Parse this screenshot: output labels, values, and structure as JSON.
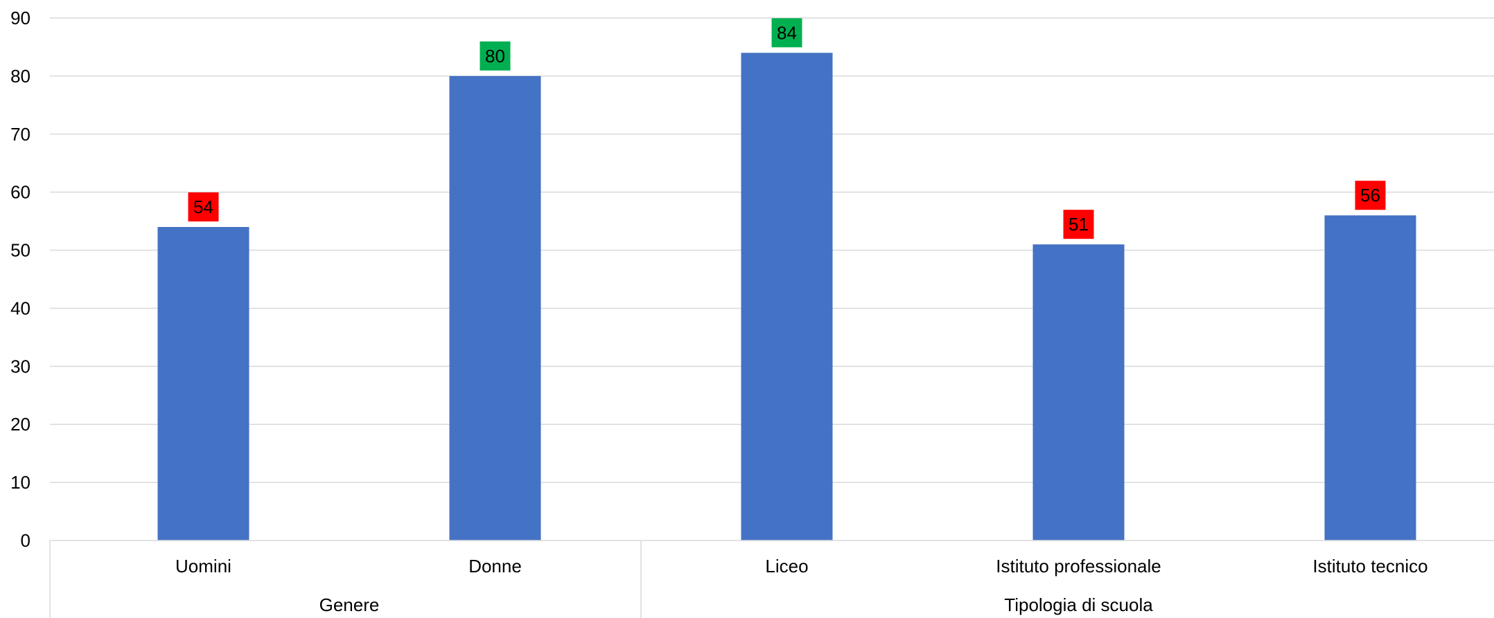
{
  "chart_data": {
    "type": "bar",
    "categories": [
      "Uomini",
      "Donne",
      "Liceo",
      "Istituto professionale",
      "Istituto tecnico"
    ],
    "values": [
      54,
      80,
      84,
      51,
      56
    ],
    "data_labels": [
      "54",
      "80",
      "84",
      "51",
      "56"
    ],
    "label_colors": [
      "#ff0000",
      "#00b050",
      "#00b050",
      "#ff0000",
      "#ff0000"
    ],
    "groups": [
      {
        "label": "Genere",
        "categories": [
          "Uomini",
          "Donne"
        ]
      },
      {
        "label": "Tipologia di scuola",
        "categories": [
          "Liceo",
          "Istituto professionale",
          "Istituto tecnico"
        ]
      }
    ],
    "yticks": [
      "0",
      "10",
      "20",
      "30",
      "40",
      "50",
      "60",
      "70",
      "80",
      "90"
    ],
    "ylim": [
      0,
      90
    ],
    "grid": true,
    "bar_color": "#4472c4",
    "title": "",
    "xlabel": "",
    "ylabel": ""
  }
}
